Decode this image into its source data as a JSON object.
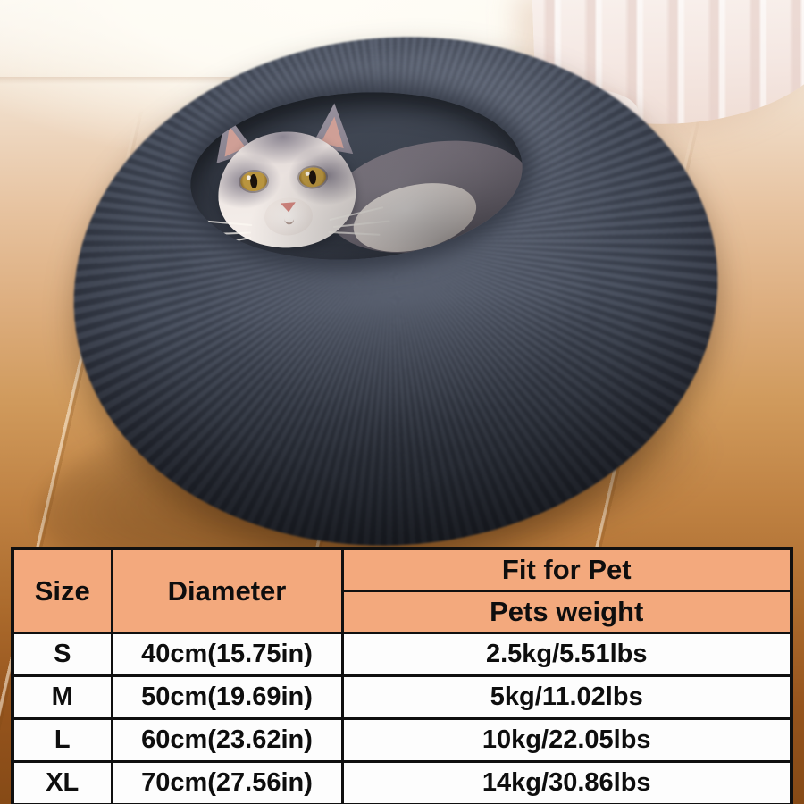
{
  "photo": {
    "subject": "cat-in-plush-donut-pet-bed",
    "palette": {
      "bed_gray": "#454c5b",
      "bed_dark": "#15161a",
      "cat_gray": "#7b747e",
      "cat_white": "#f2ebe7",
      "eye_amber": "#b9953f",
      "wood_light": "#e7c3a0",
      "wood_dark": "#95541d",
      "curtain": "#f5e8e3",
      "wall": "#f8f3ec"
    }
  },
  "size_table": {
    "colors": {
      "header_bg": "#f3a97d",
      "row_bg": "#fdfdfd",
      "border": "#101010",
      "text": "#0e0e0e"
    },
    "headers": {
      "size": "Size",
      "diameter": "Diameter",
      "fit_for_pet": "Fit for Pet",
      "pets_weight": "Pets weight"
    },
    "rows": [
      {
        "size": "S",
        "diameter": "40cm(15.75in)",
        "weight": "2.5kg/5.51lbs"
      },
      {
        "size": "M",
        "diameter": "50cm(19.69in)",
        "weight": "5kg/11.02lbs"
      },
      {
        "size": "L",
        "diameter": "60cm(23.62in)",
        "weight": "10kg/22.05lbs"
      },
      {
        "size": "XL",
        "diameter": "70cm(27.56in)",
        "weight": "14kg/30.86lbs"
      }
    ]
  }
}
